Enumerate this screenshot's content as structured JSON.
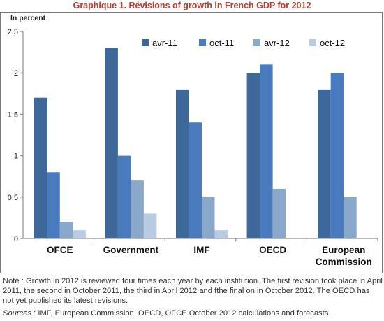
{
  "title": "Graphique 1. Révisions of growth in French GDP for 2012",
  "colors": {
    "title": "#c0392b",
    "series": [
      "#3d6899",
      "#4a7bbf",
      "#8aa8cc",
      "#b9cbe2"
    ]
  },
  "chart_data": {
    "type": "bar",
    "ylabel": "In percent",
    "ylim": [
      0,
      2.5
    ],
    "yticks": [
      "0",
      "0,5",
      "1",
      "1,5",
      "2",
      "2,5"
    ],
    "ytick_values": [
      0,
      0.5,
      1,
      1.5,
      2,
      2.5
    ],
    "categories": [
      "OFCE",
      "Government",
      "IMF",
      "OECD",
      "European\nCommission"
    ],
    "series": [
      {
        "name": "avr-11",
        "values": [
          1.7,
          2.3,
          1.8,
          2.0,
          1.8
        ]
      },
      {
        "name": "oct-11",
        "values": [
          0.8,
          1.0,
          1.4,
          2.1,
          2.0
        ]
      },
      {
        "name": "avr-12",
        "values": [
          0.2,
          0.7,
          0.5,
          0.6,
          0.5
        ]
      },
      {
        "name": "oct-12",
        "values": [
          0.1,
          0.3,
          0.1,
          null,
          null
        ]
      }
    ],
    "legend_position": "top-right",
    "grid": false
  },
  "note": "Note : Growth in 2012 is reviewed four times each year by each institution. The first revision took place in April 2011, the second in October 2011, the third in April 2012 and fthe final on in October 2012. The OECD has not yet published its latest revisions.",
  "sources_label": "Sources",
  "sources_text": " : IMF, European Commission, OECD, OFCE October 2012 calculations and forecasts."
}
